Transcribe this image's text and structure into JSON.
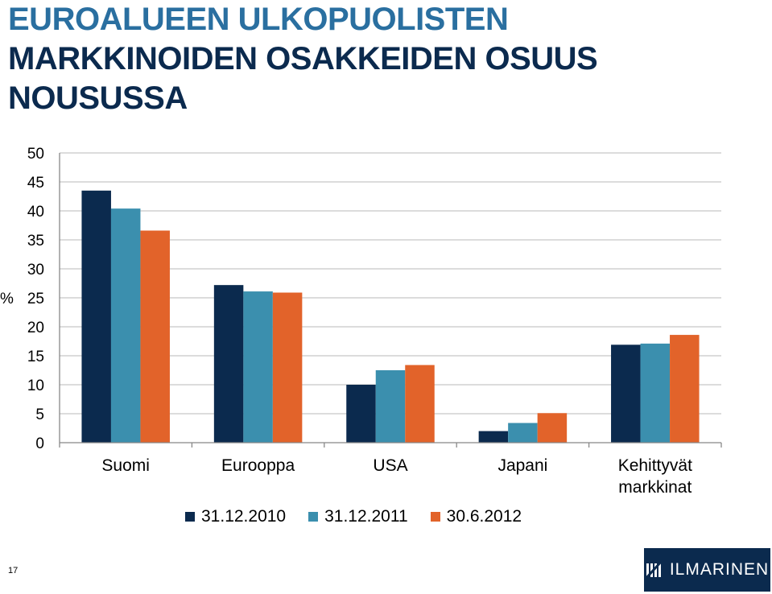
{
  "title": {
    "line1": "EUROALUEEN ULKOPUOLISTEN",
    "line2": "MARKKINOIDEN OSAKKEIDEN OSUUS",
    "line3": "NOUSUSSA"
  },
  "chart_data": {
    "type": "bar",
    "title": "EUROALUEEN ULKOPUOLISTEN MARKKINOIDEN OSAKKEIDEN OSUUS NOUSUSSA",
    "ylabel": "%",
    "ylim": [
      0,
      50
    ],
    "yticks": [
      0,
      5,
      10,
      15,
      20,
      25,
      30,
      35,
      40,
      45,
      50
    ],
    "grid": true,
    "legend_position": "bottom",
    "categories": [
      "Suomi",
      "Eurooppa",
      "USA",
      "Japani",
      "Kehittyvät markkinat"
    ],
    "category_lines": [
      [
        "Suomi"
      ],
      [
        "Eurooppa"
      ],
      [
        "USA"
      ],
      [
        "Japani"
      ],
      [
        "Kehittyvät",
        "markkinat"
      ]
    ],
    "series": [
      {
        "name": "31.12.2010",
        "color": "#0b2a4e",
        "values": [
          43.5,
          27.2,
          10.0,
          2.0,
          16.9
        ]
      },
      {
        "name": "31.12.2011",
        "color": "#3b8fae",
        "values": [
          40.4,
          26.1,
          12.5,
          3.4,
          17.1
        ]
      },
      {
        "name": "30.6.2012",
        "color": "#e2632a",
        "values": [
          36.6,
          25.9,
          13.4,
          5.1,
          18.6
        ]
      }
    ]
  },
  "footer": {
    "page_number": "17",
    "logo_text": "ILMARINEN",
    "logo_icon": "ilmarinen-logo-icon"
  }
}
